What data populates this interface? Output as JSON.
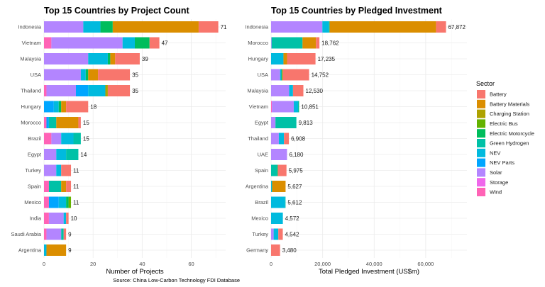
{
  "caption": "Source: China Low-Carbon Technology FDI Database",
  "legend": {
    "title": "Sector",
    "items": [
      {
        "label": "Battery",
        "color": "#F8766D"
      },
      {
        "label": "Battery Materials",
        "color": "#DB8E00"
      },
      {
        "label": "Charging Station",
        "color": "#AEA200"
      },
      {
        "label": "Electric Bus",
        "color": "#64B200"
      },
      {
        "label": "Electric Motorcycle",
        "color": "#00BD5C"
      },
      {
        "label": "Green Hydrogen",
        "color": "#00C1A7"
      },
      {
        "label": "NEV",
        "color": "#00BADE"
      },
      {
        "label": "NEV Parts",
        "color": "#00A6FF"
      },
      {
        "label": "Solar",
        "color": "#B385FF"
      },
      {
        "label": "Storage",
        "color": "#EF67EB"
      },
      {
        "label": "Wind",
        "color": "#FF63B6"
      }
    ]
  },
  "chart_data": [
    {
      "type": "bar",
      "orientation": "horizontal",
      "stacked": true,
      "title": "Top 15 Countries by Project Count",
      "xlabel": "Number of Projects",
      "ylabel": "",
      "xlim": [
        0,
        74
      ],
      "xticks": [
        0,
        20,
        40,
        60
      ],
      "xtick_labels": [
        "0",
        "20",
        "40",
        "60"
      ],
      "categories": [
        "Indonesia",
        "Vietnam",
        "Malaysia",
        "USA",
        "Thailand",
        "Hungary",
        "Morocco",
        "Brazil",
        "Egypt",
        "Turkey",
        "Spain",
        "Mexico",
        "India",
        "Saudi Arabia",
        "Argentina"
      ],
      "totals": [
        71,
        47,
        39,
        35,
        35,
        18,
        15,
        15,
        14,
        11,
        11,
        11,
        10,
        9,
        9
      ],
      "total_labels": [
        "71",
        "47",
        "39",
        "35",
        "35",
        "18",
        "15",
        "15",
        "14",
        "11",
        "11",
        "11",
        "10",
        "9",
        "9"
      ],
      "segments": [
        {
          "Solar": 16,
          "NEV": 7,
          "Electric Motorcycle": 5,
          "Battery Materials": 35,
          "Battery": 8
        },
        {
          "Wind": 3,
          "Solar": 29,
          "NEV": 5,
          "Electric Motorcycle": 6,
          "Battery": 4
        },
        {
          "Solar": 18,
          "NEV": 8,
          "Electric Motorcycle": 1,
          "Battery Materials": 2,
          "Battery": 10
        },
        {
          "Solar": 15,
          "NEV": 2,
          "Electric Motorcycle": 1,
          "Battery Materials": 4,
          "Battery": 13
        },
        {
          "Wind": 1,
          "Solar": 12,
          "NEV Parts": 5,
          "NEV": 7,
          "Charging Station": 1,
          "Battery": 9
        },
        {
          "NEV Parts": 4,
          "NEV": 2,
          "Electric Motorcycle": 1,
          "Battery Materials": 2,
          "Battery": 9
        },
        {
          "Wind": 1,
          "NEV Parts": 1,
          "Green Hydrogen": 3,
          "Battery Materials": 9,
          "Battery": 1
        },
        {
          "Wind": 3,
          "Solar": 4,
          "NEV": 5,
          "Green Hydrogen": 3
        },
        {
          "Solar": 5,
          "NEV": 4,
          "Green Hydrogen": 5
        },
        {
          "Solar": 5,
          "NEV": 2,
          "Battery": 4
        },
        {
          "Wind": 2,
          "Green Hydrogen": 5,
          "Battery Materials": 2,
          "Battery": 2
        },
        {
          "Wind": 2,
          "NEV Parts": 4,
          "NEV": 3,
          "Electric Motorcycle": 1,
          "Electric Bus": 1
        },
        {
          "Wind": 2,
          "Solar": 6,
          "NEV": 1,
          "Battery": 1
        },
        {
          "Wind": 1,
          "Solar": 6,
          "Green Hydrogen": 1,
          "Battery": 1
        },
        {
          "NEV": 1,
          "Battery Materials": 8
        }
      ]
    },
    {
      "type": "bar",
      "orientation": "horizontal",
      "stacked": true,
      "title": "Top 15 Countries by Pledged Investment",
      "xlabel": "Total Pledged Investment (US$m)",
      "ylabel": "",
      "xlim": [
        0,
        76000
      ],
      "xticks": [
        0,
        20000,
        40000,
        60000
      ],
      "xtick_labels": [
        "0",
        "20,000",
        "40,000",
        "60,000"
      ],
      "categories": [
        "Indonesia",
        "Morocco",
        "Hungary",
        "USA",
        "Malaysia",
        "Vietnam",
        "Egypt",
        "Thailand",
        "UAE",
        "Spain",
        "Argentina",
        "Brazil",
        "Mexico",
        "Turkey",
        "Germany"
      ],
      "totals": [
        67872,
        18762,
        17235,
        14752,
        12530,
        10851,
        9813,
        6908,
        6180,
        5975,
        5627,
        5612,
        4572,
        4542,
        3480
      ],
      "total_labels": [
        "67,872",
        "18,762",
        "17,235",
        "14,752",
        "12,530",
        "10,851",
        "9,813",
        "6,908",
        "6,180",
        "5,975",
        "5,627",
        "5,612",
        "4,572",
        "4,542",
        "3,480"
      ],
      "segments": [
        {
          "Solar": 19900,
          "NEV": 2500,
          "Green Hydrogen": 300,
          "Battery Materials": 41300,
          "Battery": 3872
        },
        {
          "Solar": 200,
          "Green Hydrogen": 12000,
          "Battery Materials": 5200,
          "Battery": 1362
        },
        {
          "NEV": 4800,
          "Battery Materials": 1400,
          "Battery": 11035
        },
        {
          "Solar": 3500,
          "NEV": 500,
          "Electric Motorcycle": 300,
          "Battery Materials": 300,
          "Battery": 10152
        },
        {
          "Solar": 7000,
          "NEV": 1500,
          "Battery": 4030
        },
        {
          "Wind": 300,
          "Solar": 8500,
          "NEV": 1800,
          "Electric Motorcycle": 251
        },
        {
          "Solar": 1700,
          "Green Hydrogen": 8113
        },
        {
          "Solar": 3000,
          "NEV": 2000,
          "Battery": 1908
        },
        {
          "Solar": 6180
        },
        {
          "Green Hydrogen": 2300,
          "Electric Motorcycle": 300,
          "Battery": 3375
        },
        {
          "NEV": 400,
          "Battery Materials": 5227
        },
        {
          "NEV": 5400,
          "Green Hydrogen": 212
        },
        {
          "NEV": 4572
        },
        {
          "Solar": 1000,
          "NEV": 1800,
          "Battery": 1742
        },
        {
          "Battery": 3480
        }
      ]
    }
  ]
}
